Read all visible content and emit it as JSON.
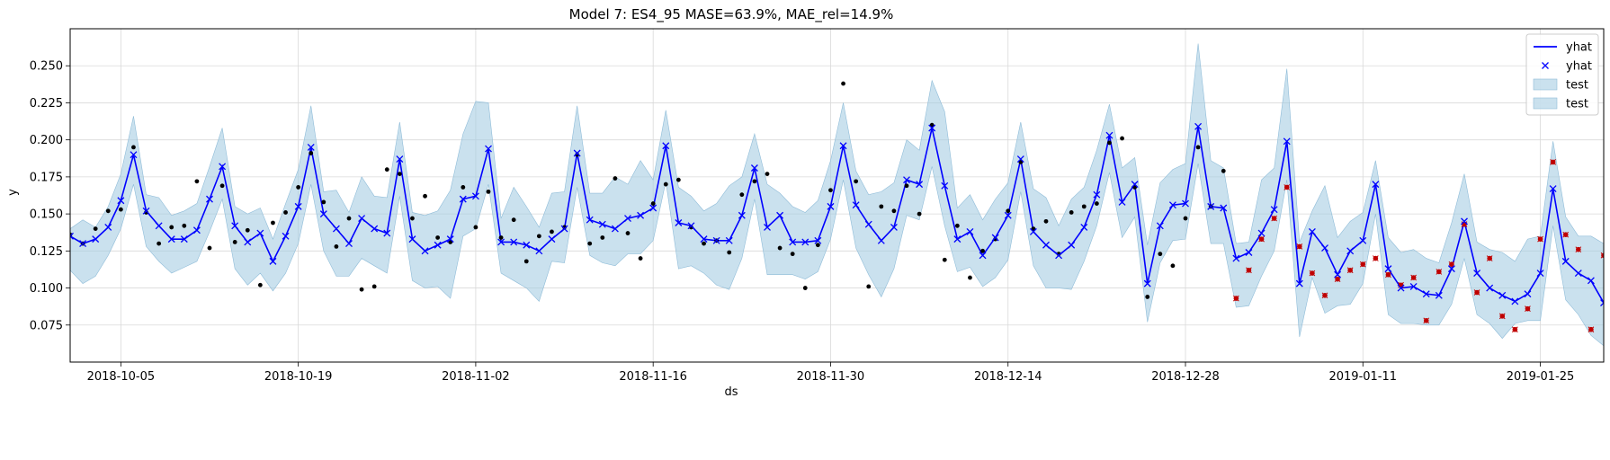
{
  "chart_data": {
    "type": "line",
    "title": "Model 7: ES4_95 MASE=63.9%, MAE_rel=14.9%",
    "xlabel": "ds",
    "ylabel": "y",
    "xlim": [
      "2018-10-01",
      "2019-01-30"
    ],
    "ylim": [
      0.05,
      0.275
    ],
    "xticks": [
      "2018-10-05",
      "2018-10-19",
      "2018-11-02",
      "2018-11-16",
      "2018-11-30",
      "2018-12-14",
      "2018-12-28",
      "2019-01-11",
      "2019-01-25"
    ],
    "yticks": [
      "0.075",
      "0.100",
      "0.125",
      "0.150",
      "0.175",
      "0.200",
      "0.225",
      "0.250"
    ],
    "grid": true,
    "legend_position": "top-right",
    "legend": [
      "yhat",
      "yhat",
      "test",
      "test"
    ],
    "colors": {
      "line": "#0000ff",
      "band": "#a6cde3",
      "band_edge": "#8fbcd8",
      "actual": "#000000",
      "test_actual": "#c00000",
      "grid": "#d9d9d9"
    },
    "start_date": "2018-10-01",
    "yhat": [
      0.135,
      0.13,
      0.133,
      0.141,
      0.159,
      0.19,
      0.152,
      0.142,
      0.133,
      0.133,
      0.139,
      0.16,
      0.182,
      0.142,
      0.131,
      0.137,
      0.118,
      0.135,
      0.155,
      0.195,
      0.15,
      0.14,
      0.13,
      0.147,
      0.14,
      0.137,
      0.187,
      0.133,
      0.125,
      0.129,
      0.133,
      0.16,
      0.162,
      0.194,
      0.131,
      0.131,
      0.129,
      0.125,
      0.133,
      0.14,
      0.191,
      0.146,
      0.143,
      0.14,
      0.147,
      0.149,
      0.154,
      0.196,
      0.144,
      0.142,
      0.133,
      0.132,
      0.132,
      0.149,
      0.181,
      0.141,
      0.149,
      0.131,
      0.131,
      0.132,
      0.155,
      0.196,
      0.156,
      0.143,
      0.132,
      0.141,
      0.173,
      0.17,
      0.208,
      0.169,
      0.133,
      0.138,
      0.122,
      0.134,
      0.149,
      0.187,
      0.138,
      0.129,
      0.122,
      0.129,
      0.141,
      0.163,
      0.203,
      0.158,
      0.17,
      0.103,
      0.142,
      0.156,
      0.157,
      0.209,
      0.155,
      0.154,
      0.12,
      0.124,
      0.137,
      0.153,
      0.199,
      0.103,
      0.138,
      0.127,
      0.109,
      0.125,
      0.132,
      0.17,
      0.113,
      0.1,
      0.101,
      0.096,
      0.095,
      0.113,
      0.145,
      0.11,
      0.1,
      0.095,
      0.091,
      0.096,
      0.11,
      0.167,
      0.118,
      0.11,
      0.105,
      0.09,
      0.11
    ],
    "lower": [
      0.112,
      0.103,
      0.108,
      0.122,
      0.14,
      0.17,
      0.128,
      0.118,
      0.11,
      0.114,
      0.118,
      0.138,
      0.16,
      0.113,
      0.102,
      0.11,
      0.098,
      0.11,
      0.13,
      0.17,
      0.125,
      0.108,
      0.108,
      0.12,
      0.115,
      0.11,
      0.162,
      0.105,
      0.1,
      0.101,
      0.093,
      0.135,
      0.14,
      0.17,
      0.11,
      0.105,
      0.1,
      0.091,
      0.118,
      0.117,
      0.168,
      0.122,
      0.117,
      0.115,
      0.123,
      0.123,
      0.132,
      0.172,
      0.113,
      0.115,
      0.11,
      0.102,
      0.099,
      0.12,
      0.16,
      0.109,
      0.109,
      0.109,
      0.106,
      0.111,
      0.133,
      0.173,
      0.127,
      0.109,
      0.094,
      0.113,
      0.149,
      0.146,
      0.182,
      0.142,
      0.111,
      0.114,
      0.101,
      0.107,
      0.119,
      0.165,
      0.115,
      0.1,
      0.1,
      0.099,
      0.118,
      0.142,
      0.178,
      0.134,
      0.148,
      0.077,
      0.117,
      0.132,
      0.133,
      0.184,
      0.13,
      0.13,
      0.087,
      0.088,
      0.108,
      0.125,
      0.173,
      0.067,
      0.107,
      0.083,
      0.088,
      0.089,
      0.103,
      0.15,
      0.082,
      0.076,
      0.076,
      0.075,
      0.075,
      0.089,
      0.12,
      0.082,
      0.076,
      0.066,
      0.076,
      0.078,
      0.078,
      0.142,
      0.092,
      0.082,
      0.068,
      0.061,
      0.084
    ],
    "upper": [
      0.14,
      0.146,
      0.141,
      0.155,
      0.177,
      0.216,
      0.163,
      0.161,
      0.149,
      0.152,
      0.157,
      0.182,
      0.208,
      0.155,
      0.15,
      0.154,
      0.133,
      0.157,
      0.18,
      0.223,
      0.165,
      0.166,
      0.151,
      0.175,
      0.162,
      0.161,
      0.212,
      0.151,
      0.149,
      0.152,
      0.166,
      0.204,
      0.226,
      0.225,
      0.147,
      0.168,
      0.155,
      0.141,
      0.164,
      0.165,
      0.223,
      0.164,
      0.164,
      0.175,
      0.17,
      0.186,
      0.173,
      0.22,
      0.168,
      0.162,
      0.152,
      0.157,
      0.169,
      0.175,
      0.204,
      0.17,
      0.164,
      0.155,
      0.151,
      0.159,
      0.186,
      0.225,
      0.179,
      0.163,
      0.165,
      0.171,
      0.2,
      0.193,
      0.24,
      0.219,
      0.154,
      0.163,
      0.146,
      0.16,
      0.171,
      0.212,
      0.167,
      0.161,
      0.142,
      0.16,
      0.168,
      0.193,
      0.224,
      0.181,
      0.188,
      0.129,
      0.171,
      0.18,
      0.184,
      0.265,
      0.186,
      0.181,
      0.13,
      0.131,
      0.173,
      0.181,
      0.248,
      0.131,
      0.152,
      0.169,
      0.134,
      0.145,
      0.151,
      0.186,
      0.134,
      0.124,
      0.126,
      0.12,
      0.117,
      0.144,
      0.177,
      0.131,
      0.126,
      0.124,
      0.118,
      0.133,
      0.135,
      0.199,
      0.148,
      0.135,
      0.135,
      0.13,
      0.134
    ],
    "actual": [
      0.136,
      0.13,
      0.14,
      0.152,
      0.153,
      0.195,
      0.151,
      0.13,
      0.141,
      0.142,
      0.172,
      0.127,
      0.169,
      0.131,
      0.139,
      0.102,
      0.144,
      0.151,
      0.168,
      0.191,
      0.158,
      0.128,
      0.147,
      0.099,
      0.101,
      0.18,
      0.177,
      0.147,
      0.162,
      0.134,
      0.131,
      0.168,
      0.141,
      0.165,
      0.134,
      0.146,
      0.118,
      0.135,
      0.138,
      0.141,
      0.19,
      0.13,
      0.134,
      0.174,
      0.137,
      0.12,
      0.157,
      0.17,
      0.173,
      0.141,
      0.13,
      0.132,
      0.124,
      0.163,
      0.172,
      0.177,
      0.127,
      0.123,
      0.1,
      0.129,
      0.166,
      0.238,
      0.172,
      0.101,
      0.155,
      0.152,
      0.169,
      0.15,
      0.21,
      0.119,
      0.142,
      0.107,
      0.125,
      0.133,
      0.152,
      0.185,
      0.14,
      0.145,
      0.123,
      0.151,
      0.155,
      0.157,
      0.198,
      0.201,
      0.168,
      0.094,
      0.123,
      0.115,
      0.147,
      0.195,
      0.155,
      0.179
    ],
    "test_start_index": 92,
    "test_actual": [
      0.093,
      0.112,
      0.133,
      0.147,
      0.168,
      0.128,
      0.11,
      0.095,
      0.106,
      0.112,
      0.116,
      0.12,
      0.109,
      0.102,
      0.107,
      0.078,
      0.111,
      0.116,
      0.143,
      0.097,
      0.12,
      0.081,
      0.072,
      0.086,
      0.133,
      0.185,
      0.136,
      0.126,
      0.072,
      0.122,
      0.126
    ]
  }
}
